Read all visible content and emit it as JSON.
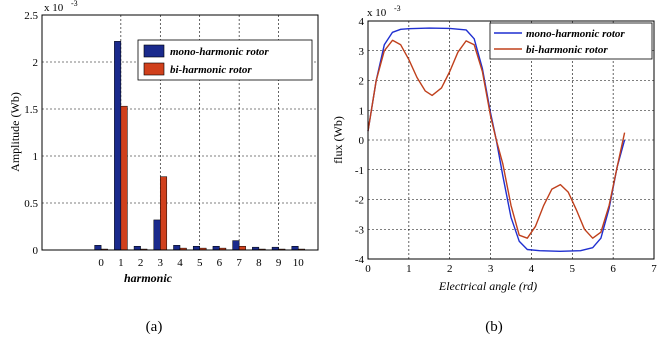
{
  "chart_data": [
    {
      "type": "bar",
      "caption": "(a)",
      "scale_label": "x 10",
      "scale_exponent": "-3",
      "xlabel": "harmonic",
      "ylabel": "Amplitude (Wb)",
      "categories": [
        "0",
        "1",
        "2",
        "3",
        "4",
        "5",
        "6",
        "7",
        "8",
        "9",
        "10"
      ],
      "ylim": [
        0,
        2.5
      ],
      "yticks": [
        0,
        0.5,
        1,
        1.5,
        2,
        2.5
      ],
      "ytick_labels": [
        "0",
        "0.5",
        "1",
        "1.5",
        "2",
        "2.5"
      ],
      "grid": true,
      "legend_position": "top-right",
      "series": [
        {
          "name": "mono-harmonic rotor",
          "color": "#1a2a8c",
          "values": [
            0.05,
            2.22,
            0.04,
            0.32,
            0.05,
            0.04,
            0.04,
            0.1,
            0.03,
            0.03,
            0.04
          ]
        },
        {
          "name": "bi-harmonic rotor",
          "color": "#d0401c",
          "values": [
            0.01,
            1.53,
            0.01,
            0.78,
            0.02,
            0.02,
            0.02,
            0.04,
            0.01,
            0.01,
            0.01
          ]
        }
      ]
    },
    {
      "type": "line",
      "caption": "(b)",
      "scale_label": "x 10",
      "scale_exponent": "-3",
      "xlabel": "Electrical angle (rd)",
      "ylabel": "flux (Wb)",
      "xlim": [
        0,
        7
      ],
      "ylim": [
        -4,
        4
      ],
      "xticks": [
        0,
        1,
        2,
        3,
        4,
        5,
        6,
        7
      ],
      "xtick_labels": [
        "0",
        "1",
        "2",
        "3",
        "4",
        "5",
        "6",
        "7"
      ],
      "yticks": [
        -4,
        -3,
        -2,
        -1,
        0,
        1,
        2,
        3,
        4
      ],
      "ytick_labels": [
        "-4",
        "-3",
        "-2",
        "-1",
        "0",
        "1",
        "2",
        "3",
        "4"
      ],
      "grid": true,
      "legend_position": "top-right",
      "series": [
        {
          "name": "mono-harmonic rotor",
          "color": "#1f2fd0",
          "x": [
            0,
            0.2,
            0.4,
            0.6,
            0.8,
            1.0,
            1.5,
            2.0,
            2.4,
            2.6,
            2.8,
            3.0,
            3.14,
            3.3,
            3.5,
            3.7,
            3.9,
            4.2,
            4.7,
            5.2,
            5.5,
            5.7,
            5.9,
            6.1,
            6.28
          ],
          "y": [
            0.3,
            2.0,
            3.2,
            3.62,
            3.72,
            3.74,
            3.76,
            3.75,
            3.7,
            3.4,
            2.4,
            0.9,
            0.0,
            -1.2,
            -2.6,
            -3.4,
            -3.68,
            -3.72,
            -3.74,
            -3.72,
            -3.62,
            -3.3,
            -2.3,
            -0.9,
            0.0
          ]
        },
        {
          "name": "bi-harmonic rotor",
          "color": "#c0401c",
          "x": [
            0,
            0.2,
            0.4,
            0.6,
            0.8,
            1.0,
            1.2,
            1.4,
            1.57,
            1.8,
            2.0,
            2.2,
            2.4,
            2.6,
            2.8,
            3.0,
            3.14,
            3.3,
            3.5,
            3.7,
            3.9,
            4.1,
            4.3,
            4.5,
            4.71,
            4.9,
            5.1,
            5.3,
            5.5,
            5.7,
            5.9,
            6.1,
            6.28
          ],
          "y": [
            0.3,
            2.0,
            3.0,
            3.35,
            3.2,
            2.7,
            2.1,
            1.65,
            1.5,
            1.75,
            2.3,
            2.95,
            3.33,
            3.2,
            2.3,
            0.8,
            0.0,
            -0.8,
            -2.2,
            -3.2,
            -3.3,
            -2.9,
            -2.2,
            -1.65,
            -1.5,
            -1.75,
            -2.35,
            -3.0,
            -3.3,
            -3.1,
            -2.2,
            -0.9,
            0.25
          ]
        }
      ]
    }
  ]
}
